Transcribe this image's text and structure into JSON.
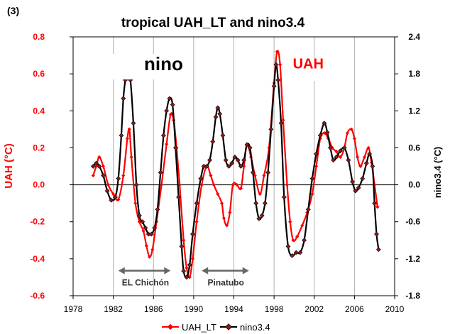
{
  "panel_label": "(3)",
  "chart_data": {
    "type": "line",
    "title": "tropical UAH_LT  and nino3.4",
    "xlabel": "",
    "ylabel_left": "UAH (°C)",
    "ylabel_right": "nino3.4 (°C)",
    "xlim": [
      1978,
      2010
    ],
    "ylim_left": [
      -0.6,
      0.8
    ],
    "ylim_right": [
      -1.8,
      2.4
    ],
    "x_ticks": [
      "1978",
      "1982",
      "1986",
      "1990",
      "1994",
      "1998",
      "2002",
      "2006",
      "2010"
    ],
    "y_ticks_left": [
      "-0.6",
      "-0.4",
      "-0.2",
      "0.0",
      "0.2",
      "0.4",
      "0.6",
      "0.8"
    ],
    "y_ticks_right": [
      "-1.8",
      "-1.2",
      "-0.6",
      "0.0",
      "0.6",
      "1.2",
      "1.8",
      "2.4"
    ],
    "grid": "vertical",
    "legend_position": "bottom",
    "colors": {
      "uah": "#ff0000",
      "nino": "#000000",
      "nino_marker": "#8b1a1a",
      "axis_left": "#ff0000",
      "arrow": "#666666",
      "grid": "#b0b0b0"
    },
    "annotations": [
      {
        "text": "nino",
        "x": 1987.0,
        "y": 0.62,
        "axis": "left",
        "color": "#000000"
      },
      {
        "text": "UAH",
        "x": 2001.4,
        "y": 0.63,
        "axis": "left",
        "color": "#ff0000"
      },
      {
        "text": "EL Chichón",
        "x": 1985.2,
        "y": -0.545,
        "axis": "left",
        "color": "#333333",
        "arrow_x": [
          1982.5,
          1987.7
        ],
        "arrow_y": -0.465
      },
      {
        "text": "Pinatubo",
        "x": 1993.2,
        "y": -0.545,
        "axis": "left",
        "color": "#333333",
        "arrow_x": [
          1990.8,
          1995.5
        ],
        "arrow_y": -0.465
      }
    ],
    "series": [
      {
        "name": "UAH_LT",
        "axis": "left",
        "x": [
          1980.0,
          1980.3,
          1980.6,
          1981.0,
          1981.5,
          1982.0,
          1982.5,
          1983.0,
          1983.4,
          1983.6,
          1983.8,
          1984.2,
          1984.6,
          1985.0,
          1985.3,
          1985.6,
          1985.9,
          1986.3,
          1986.8,
          1987.3,
          1987.7,
          1988.0,
          1988.3,
          1988.6,
          1989.0,
          1989.3,
          1989.6,
          1989.9,
          1990.3,
          1990.8,
          1991.3,
          1991.7,
          1992.0,
          1992.4,
          1992.8,
          1993.0,
          1993.3,
          1993.6,
          1993.9,
          1994.3,
          1994.7,
          1995.0,
          1995.3,
          1995.7,
          1996.1,
          1996.6,
          1997.0,
          1997.5,
          1998.0,
          1998.3,
          1998.6,
          1998.9,
          1999.3,
          1999.6,
          1999.9,
          2000.3,
          2000.8,
          2001.3,
          2001.8,
          2002.2,
          2002.6,
          2003.0,
          2003.4,
          2003.8,
          2004.2,
          2004.6,
          2005.0,
          2005.3,
          2005.7,
          2006.0,
          2006.3,
          2006.6,
          2007.0,
          2007.4,
          2007.7,
          2008.0,
          2008.3
        ],
        "values": [
          0.05,
          0.1,
          0.15,
          0.1,
          0.0,
          -0.05,
          -0.08,
          0.05,
          0.25,
          0.3,
          0.15,
          -0.1,
          -0.2,
          -0.25,
          -0.33,
          -0.39,
          -0.35,
          -0.2,
          0.0,
          0.22,
          0.38,
          0.35,
          0.2,
          0.0,
          -0.3,
          -0.45,
          -0.5,
          -0.4,
          -0.2,
          0.0,
          0.1,
          0.05,
          0.0,
          -0.05,
          -0.1,
          -0.18,
          -0.22,
          -0.15,
          0.0,
          0.0,
          -0.02,
          0.1,
          0.22,
          0.15,
          0.05,
          -0.05,
          0.05,
          0.2,
          0.55,
          0.72,
          0.65,
          0.35,
          0.0,
          -0.2,
          -0.3,
          -0.28,
          -0.22,
          -0.15,
          -0.05,
          0.1,
          0.25,
          0.28,
          0.25,
          0.2,
          0.18,
          0.15,
          0.2,
          0.28,
          0.3,
          0.25,
          0.15,
          0.1,
          0.15,
          0.2,
          0.12,
          0.0,
          -0.12
        ]
      },
      {
        "name": "nino3.4",
        "axis": "right",
        "x": [
          1980.0,
          1980.3,
          1980.6,
          1981.0,
          1981.4,
          1981.8,
          1982.2,
          1982.5,
          1982.8,
          1983.0,
          1983.2,
          1983.4,
          1983.7,
          1984.0,
          1984.3,
          1984.6,
          1984.9,
          1985.2,
          1985.5,
          1985.8,
          1986.1,
          1986.4,
          1986.7,
          1987.0,
          1987.3,
          1987.6,
          1987.9,
          1988.2,
          1988.5,
          1988.8,
          1989.0,
          1989.3,
          1989.6,
          1989.9,
          1990.3,
          1990.7,
          1991.0,
          1991.3,
          1991.6,
          1991.9,
          1992.2,
          1992.4,
          1992.6,
          1992.9,
          1993.2,
          1993.5,
          1993.8,
          1994.1,
          1994.4,
          1994.7,
          1995.0,
          1995.3,
          1995.6,
          1995.9,
          1996.2,
          1996.5,
          1996.8,
          1997.1,
          1997.4,
          1997.7,
          1998.0,
          1998.2,
          1998.4,
          1998.7,
          1999.0,
          1999.4,
          1999.8,
          2000.2,
          2000.6,
          2001.0,
          2001.4,
          2001.8,
          2002.2,
          2002.6,
          2003.0,
          2003.3,
          2003.6,
          2003.9,
          2004.2,
          2004.6,
          2005.0,
          2005.4,
          2005.8,
          2006.1,
          2006.4,
          2006.8,
          2007.2,
          2007.5,
          2007.8,
          2008.0,
          2008.2,
          2008.4
        ],
        "values": [
          0.3,
          0.35,
          0.3,
          0.15,
          -0.1,
          -0.25,
          -0.2,
          0.1,
          0.8,
          1.4,
          1.7,
          1.85,
          1.7,
          1.0,
          0.0,
          -0.5,
          -0.6,
          -0.7,
          -0.8,
          -0.8,
          -0.7,
          -0.4,
          0.2,
          0.8,
          1.2,
          1.4,
          1.3,
          0.6,
          -0.2,
          -1.0,
          -1.4,
          -1.5,
          -1.3,
          -0.8,
          -0.3,
          0.1,
          0.3,
          0.3,
          0.4,
          0.7,
          1.1,
          1.25,
          1.15,
          0.8,
          0.4,
          0.3,
          0.35,
          0.45,
          0.4,
          0.3,
          0.4,
          0.65,
          0.6,
          0.2,
          -0.3,
          -0.55,
          -0.5,
          -0.3,
          0.2,
          0.9,
          1.6,
          1.95,
          1.7,
          1.0,
          -0.2,
          -1.0,
          -1.15,
          -1.1,
          -1.1,
          -0.9,
          -0.4,
          0.1,
          0.5,
          0.8,
          1.0,
          0.85,
          0.6,
          0.4,
          0.45,
          0.55,
          0.6,
          0.4,
          0.05,
          -0.1,
          -0.05,
          0.1,
          0.35,
          0.5,
          0.3,
          -0.3,
          -0.8,
          -1.05
        ]
      }
    ]
  }
}
